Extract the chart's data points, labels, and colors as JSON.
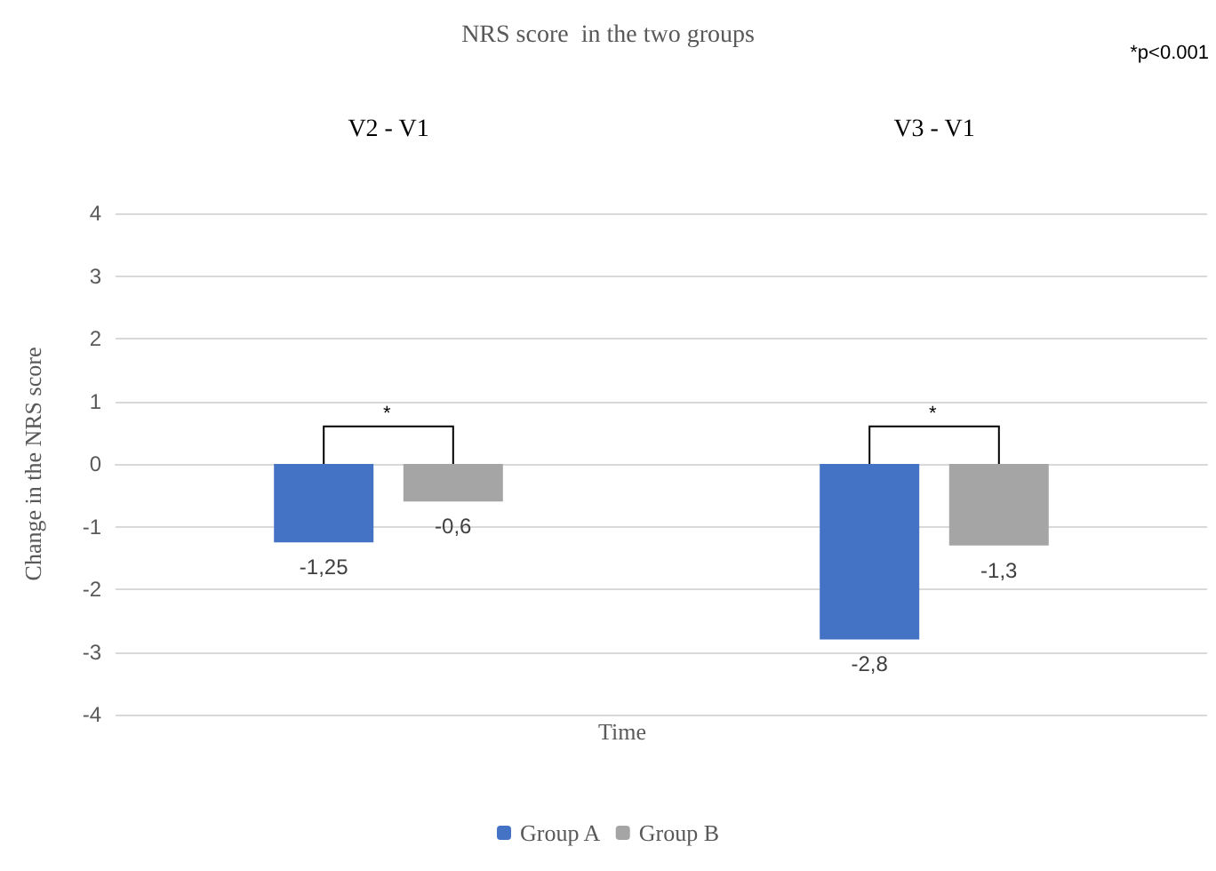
{
  "chart_data": {
    "type": "bar",
    "title": "NRS score  in the two groups",
    "xlabel": "Time",
    "ylabel": "Change in the NRS score",
    "categories": [
      "V2 - V1",
      "V3 - V1"
    ],
    "series": [
      {
        "name": "Group A",
        "color": "#4472c4",
        "values": [
          -1.25,
          -2.8
        ],
        "value_labels": [
          "-1,25",
          "-2,8"
        ]
      },
      {
        "name": "Group B",
        "color": "#a5a5a5",
        "values": [
          -0.6,
          -1.3
        ],
        "value_labels": [
          "-0,6",
          "-1,3"
        ]
      }
    ],
    "ylim": [
      -4,
      4
    ],
    "yticks": [
      -4,
      -3,
      -2,
      -1,
      0,
      1,
      2,
      3,
      4
    ],
    "grid": "y",
    "legend": "bottom",
    "annotations": [
      "*",
      "*",
      "*p<0.001"
    ]
  }
}
